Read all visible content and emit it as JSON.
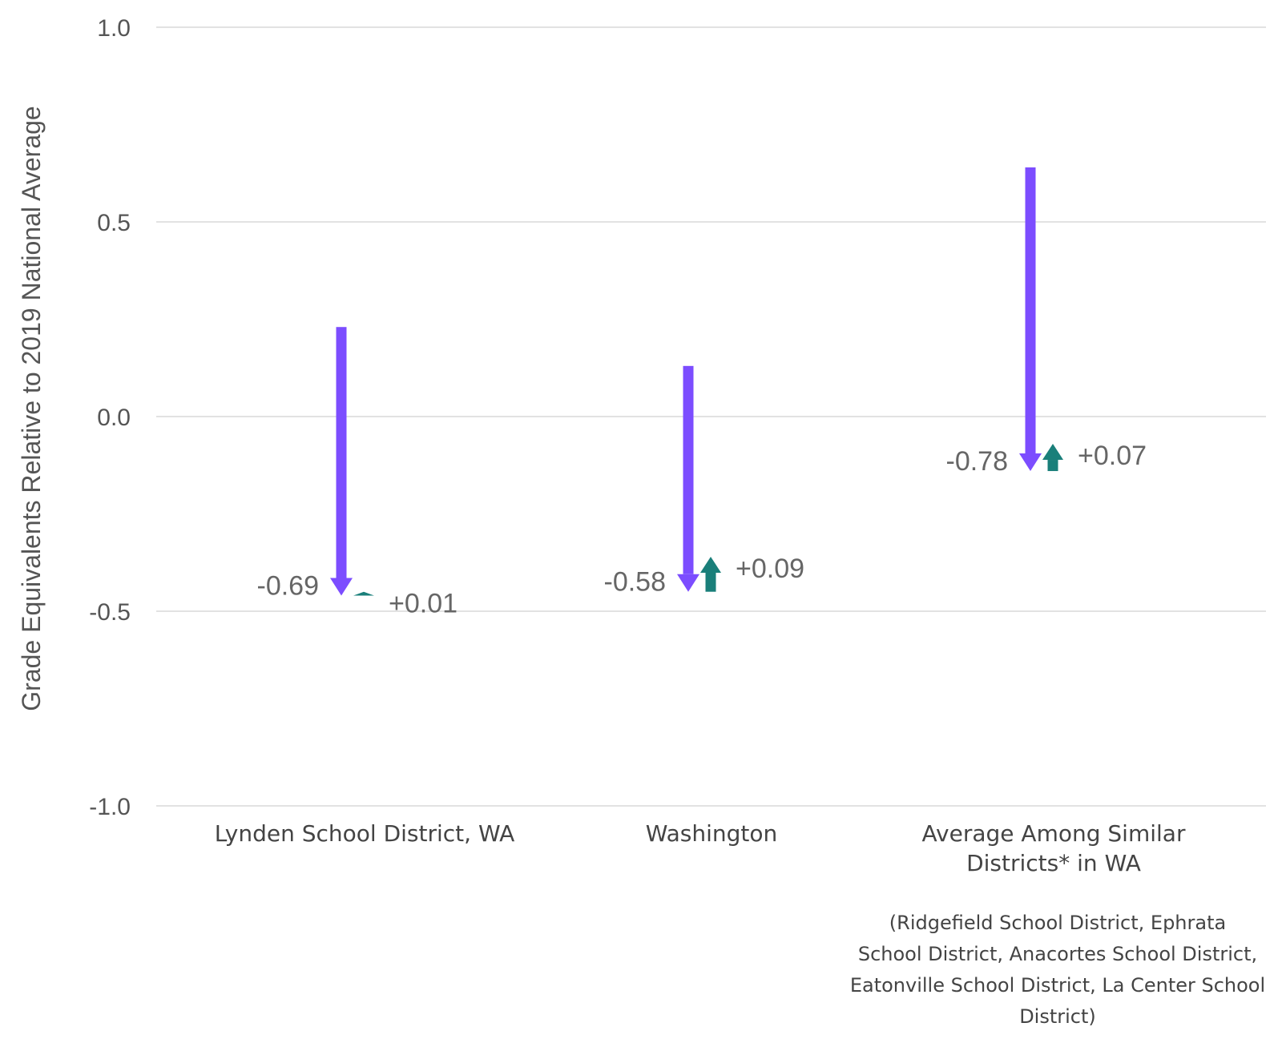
{
  "chart_data": {
    "type": "arrow",
    "ylabel": "Grade Equivalents Relative to 2019 National Average",
    "ylim": [
      -1.0,
      1.0
    ],
    "yticks": [
      "1.0",
      "0.5",
      "0.0",
      "-0.5",
      "-1.0"
    ],
    "ytick_values": [
      1.0,
      0.5,
      0.0,
      -0.5,
      -1.0
    ],
    "grid": true,
    "categories": [
      {
        "lines": [
          "Lynden School District, WA"
        ],
        "note_lines": [],
        "start": 0.23,
        "low": -0.46,
        "end": -0.45,
        "decline_label": "-0.69",
        "recovery_label": "+0.01"
      },
      {
        "lines": [
          "Washington"
        ],
        "note_lines": [],
        "start": 0.13,
        "low": -0.45,
        "end": -0.36,
        "decline_label": "-0.58",
        "recovery_label": "+0.09"
      },
      {
        "lines": [
          "Average Among Similar",
          "Districts* in WA"
        ],
        "note_lines": [
          "(Ridgefield School District, Ephrata",
          "School District, Anacortes School District,",
          "Eatonville School District, La Center School",
          "District)"
        ],
        "start": 0.64,
        "low": -0.14,
        "end": -0.07,
        "decline_label": "-0.78",
        "recovery_label": "+0.07"
      }
    ],
    "colors": {
      "decline": "#7c4dff",
      "recovery": "#1a7f7a",
      "grid": "#e2e2e2",
      "text": "#555555"
    }
  }
}
